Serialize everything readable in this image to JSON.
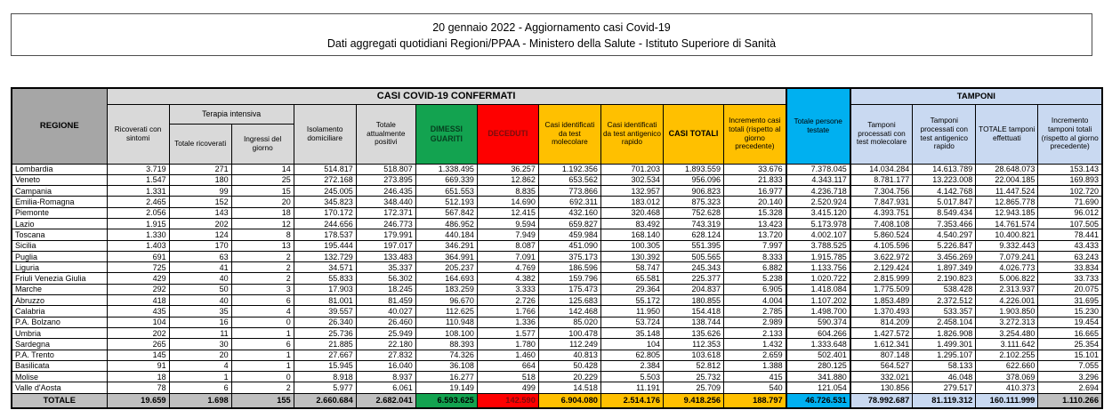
{
  "header": {
    "line1": "20 gennaio 2022 - Aggiornamento casi Covid-19",
    "line2": "Dati aggregati quotidiani Regioni/PPAA - Ministero della Salute - Istituto Superiore di Sanità"
  },
  "colors": {
    "header_gray_dark": "#a6a6a6",
    "header_gray_light": "#d9d9d9",
    "green": "#13a350",
    "red": "#fe0000",
    "yellow": "#ffc000",
    "cyan": "#00b0f0",
    "light_blue": "#c9d9f1",
    "total_row_gray": "#bfbfbf",
    "deceduti_text": "#7a0c0c"
  },
  "table": {
    "region_col_header": "REGIONE",
    "group_confirmed": "CASI COVID-19 CONFERMATI",
    "group_tamponi": "TAMPONI",
    "subgroup_terapia": "Terapia intensiva",
    "col_headers": {
      "ricoverati": "Ricoverati con sintomi",
      "totale_ricoverati": "Totale ricoverati",
      "ingressi": "Ingressi del giorno",
      "isolamento": "Isolamento domiciliare",
      "attualmente_positivi": "Totale attualmente positivi",
      "dimessi": "DIMESSI GUARITI",
      "deceduti": "DECEDUTI",
      "casi_molecolare": "Casi identificati da test molecolare",
      "casi_antigenico": "Casi identificati da test antigenico rapido",
      "casi_totali": "CASI TOTALI",
      "incremento_casi": "Incremento casi totali (rispetto al giorno precedente)",
      "persone_testate": "Totale persone testate",
      "tamponi_molecolare": "Tamponi processati con test molecolare",
      "tamponi_antigenico": "Tamponi processati con test antigenico rapido",
      "totale_tamponi": "TOTALE tamponi effettuati",
      "incremento_tamponi": "Incremento tamponi totali (rispetto al giorno precedente)"
    },
    "rows": [
      {
        "region": "Lombardia",
        "values": [
          "3.719",
          "271",
          "14",
          "514.817",
          "518.807",
          "1.338.495",
          "36.257",
          "1.192.356",
          "701.203",
          "1.893.559",
          "33.676",
          "7.378.045",
          "14.034.284",
          "14.613.789",
          "28.648.073",
          "153.143"
        ]
      },
      {
        "region": "Veneto",
        "values": [
          "1.547",
          "180",
          "25",
          "272.168",
          "273.895",
          "669.339",
          "12.862",
          "653.562",
          "302.534",
          "956.096",
          "21.833",
          "4.343.117",
          "8.781.177",
          "13.223.008",
          "22.004.185",
          "169.893"
        ]
      },
      {
        "region": "Campania",
        "values": [
          "1.331",
          "99",
          "15",
          "245.005",
          "246.435",
          "651.553",
          "8.835",
          "773.866",
          "132.957",
          "906.823",
          "16.977",
          "4.236.718",
          "7.304.756",
          "4.142.768",
          "11.447.524",
          "102.720"
        ]
      },
      {
        "region": "Emilia-Romagna",
        "values": [
          "2.465",
          "152",
          "20",
          "345.823",
          "348.440",
          "512.193",
          "14.690",
          "692.311",
          "183.012",
          "875.323",
          "20.140",
          "2.520.924",
          "7.847.931",
          "5.017.847",
          "12.865.778",
          "71.690"
        ]
      },
      {
        "region": "Piemonte",
        "values": [
          "2.056",
          "143",
          "18",
          "170.172",
          "172.371",
          "567.842",
          "12.415",
          "432.160",
          "320.468",
          "752.628",
          "15.328",
          "3.415.120",
          "4.393.751",
          "8.549.434",
          "12.943.185",
          "96.012"
        ]
      },
      {
        "region": "Lazio",
        "values": [
          "1.915",
          "202",
          "12",
          "244.656",
          "246.773",
          "486.952",
          "9.594",
          "659.827",
          "83.492",
          "743.319",
          "13.423",
          "5.173.978",
          "7.408.108",
          "7.353.466",
          "14.761.574",
          "107.505"
        ]
      },
      {
        "region": "Toscana",
        "values": [
          "1.330",
          "124",
          "8",
          "178.537",
          "179.991",
          "440.184",
          "7.949",
          "459.984",
          "168.140",
          "628.124",
          "13.720",
          "4.002.107",
          "5.860.524",
          "4.540.297",
          "10.400.821",
          "78.441"
        ]
      },
      {
        "region": "Sicilia",
        "values": [
          "1.403",
          "170",
          "13",
          "195.444",
          "197.017",
          "346.291",
          "8.087",
          "451.090",
          "100.305",
          "551.395",
          "7.997",
          "3.788.525",
          "4.105.596",
          "5.226.847",
          "9.332.443",
          "43.433"
        ]
      },
      {
        "region": "Puglia",
        "values": [
          "691",
          "63",
          "2",
          "132.729",
          "133.483",
          "364.991",
          "7.091",
          "375.173",
          "130.392",
          "505.565",
          "8.333",
          "1.915.785",
          "3.622.972",
          "3.456.269",
          "7.079.241",
          "63.243"
        ]
      },
      {
        "region": "Liguria",
        "values": [
          "725",
          "41",
          "2",
          "34.571",
          "35.337",
          "205.237",
          "4.769",
          "186.596",
          "58.747",
          "245.343",
          "6.882",
          "1.133.756",
          "2.129.424",
          "1.897.349",
          "4.026.773",
          "33.834"
        ]
      },
      {
        "region": "Friuli Venezia Giulia",
        "values": [
          "429",
          "40",
          "2",
          "55.833",
          "56.302",
          "164.693",
          "4.382",
          "159.796",
          "65.581",
          "225.377",
          "5.238",
          "1.020.722",
          "2.815.999",
          "2.190.823",
          "5.006.822",
          "33.733"
        ]
      },
      {
        "region": "Marche",
        "values": [
          "292",
          "50",
          "3",
          "17.903",
          "18.245",
          "183.259",
          "3.333",
          "175.473",
          "29.364",
          "204.837",
          "6.905",
          "1.418.084",
          "1.775.509",
          "538.428",
          "2.313.937",
          "20.075"
        ]
      },
      {
        "region": "Abruzzo",
        "values": [
          "418",
          "40",
          "6",
          "81.001",
          "81.459",
          "96.670",
          "2.726",
          "125.683",
          "55.172",
          "180.855",
          "4.004",
          "1.107.202",
          "1.853.489",
          "2.372.512",
          "4.226.001",
          "31.695"
        ]
      },
      {
        "region": "Calabria",
        "values": [
          "435",
          "35",
          "4",
          "39.557",
          "40.027",
          "112.625",
          "1.766",
          "142.468",
          "11.950",
          "154.418",
          "2.785",
          "1.498.700",
          "1.370.493",
          "533.357",
          "1.903.850",
          "15.230"
        ]
      },
      {
        "region": "P.A. Bolzano",
        "values": [
          "104",
          "16",
          "0",
          "26.340",
          "26.460",
          "110.948",
          "1.336",
          "85.020",
          "53.724",
          "138.744",
          "2.989",
          "590.374",
          "814.209",
          "2.458.104",
          "3.272.313",
          "19.454"
        ]
      },
      {
        "region": "Umbria",
        "values": [
          "202",
          "11",
          "1",
          "25.736",
          "25.949",
          "108.100",
          "1.577",
          "100.478",
          "35.148",
          "135.626",
          "2.133",
          "604.266",
          "1.427.572",
          "1.826.908",
          "3.254.480",
          "16.665"
        ]
      },
      {
        "region": "Sardegna",
        "values": [
          "265",
          "30",
          "6",
          "21.885",
          "22.180",
          "88.393",
          "1.780",
          "112.249",
          "104",
          "112.353",
          "1.432",
          "1.333.648",
          "1.612.341",
          "1.499.301",
          "3.111.642",
          "25.354"
        ]
      },
      {
        "region": "P.A. Trento",
        "values": [
          "145",
          "20",
          "1",
          "27.667",
          "27.832",
          "74.326",
          "1.460",
          "40.813",
          "62.805",
          "103.618",
          "2.659",
          "502.401",
          "807.148",
          "1.295.107",
          "2.102.255",
          "15.101"
        ]
      },
      {
        "region": "Basilicata",
        "values": [
          "91",
          "4",
          "1",
          "15.945",
          "16.040",
          "36.108",
          "664",
          "50.428",
          "2.384",
          "52.812",
          "1.388",
          "280.125",
          "564.527",
          "58.133",
          "622.660",
          "7.055"
        ]
      },
      {
        "region": "Molise",
        "values": [
          "18",
          "1",
          "0",
          "8.918",
          "8.937",
          "16.277",
          "518",
          "20.229",
          "5.503",
          "25.732",
          "415",
          "341.880",
          "332.021",
          "46.048",
          "378.069",
          "3.296"
        ]
      },
      {
        "region": "Valle d'Aosta",
        "values": [
          "78",
          "6",
          "2",
          "5.977",
          "6.061",
          "19.149",
          "499",
          "14.518",
          "11.191",
          "25.709",
          "540",
          "121.054",
          "130.856",
          "279.517",
          "410.373",
          "2.694"
        ]
      }
    ],
    "total_row": {
      "label": "TOTALE",
      "values": [
        "19.659",
        "1.698",
        "155",
        "2.660.684",
        "2.682.041",
        "6.593.625",
        "142.590",
        "6.904.080",
        "2.514.176",
        "9.418.256",
        "188.797",
        "46.726.531",
        "78.992.687",
        "81.119.312",
        "160.111.999",
        "1.110.266"
      ]
    }
  }
}
